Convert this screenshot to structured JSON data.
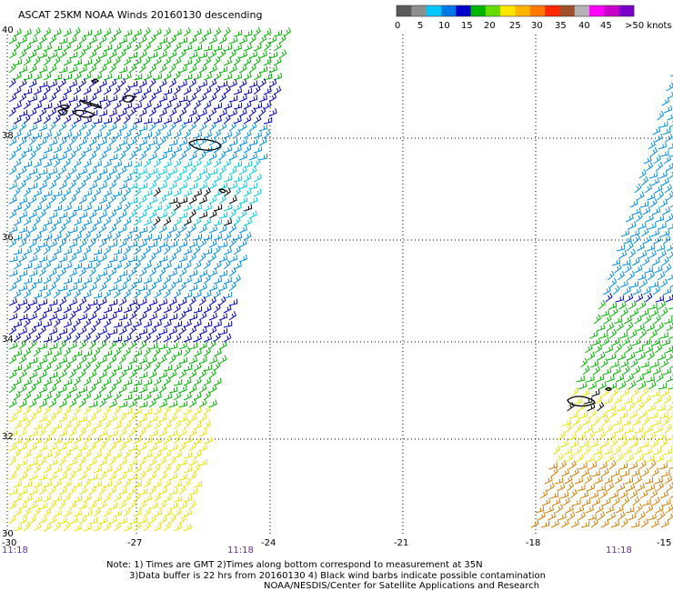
{
  "title": "ASCAT 25KM NOAA Winds 20160130 descending",
  "scale": {
    "labels": [
      "0",
      "5",
      "10",
      "15",
      "20",
      "25",
      "30",
      "35",
      "40",
      "45",
      ">50 knots"
    ],
    "colors": [
      "#5a5a5a",
      "#8e8e8e",
      "#00c8ff",
      "#0078e6",
      "#0000c8",
      "#00b400",
      "#66dd00",
      "#ffe600",
      "#ffb400",
      "#ff7800",
      "#ff2800",
      "#a05028",
      "#b4b4b4",
      "#ff00ff",
      "#c800c8",
      "#7800c8"
    ]
  },
  "lat_labels": [
    "40",
    "38",
    "36",
    "34",
    "32",
    "30"
  ],
  "lon_labels": [
    "-30",
    "-27",
    "-24",
    "-21",
    "-18",
    "-15"
  ],
  "pass_times": [
    "11:18",
    "11:18",
    "11:18"
  ],
  "notes": [
    "Note: 1) Times are GMT 2)Times along bottom correspond to measurement at 35N",
    "3)Data buffer is 22 hrs from 20160130 4) Black wind barbs indicate possible contamination",
    "NOAA/NESDIS/Center for Satellite Applications and Research"
  ],
  "colors": {
    "calm": "#00d0e0",
    "light": "#0090e8",
    "moderate": "#0000c8",
    "fresh": "#00b400",
    "strong": "#e6e600",
    "gale": "#d08000",
    "contaminated": "#000000",
    "time_label": "#6b2c9a"
  }
}
